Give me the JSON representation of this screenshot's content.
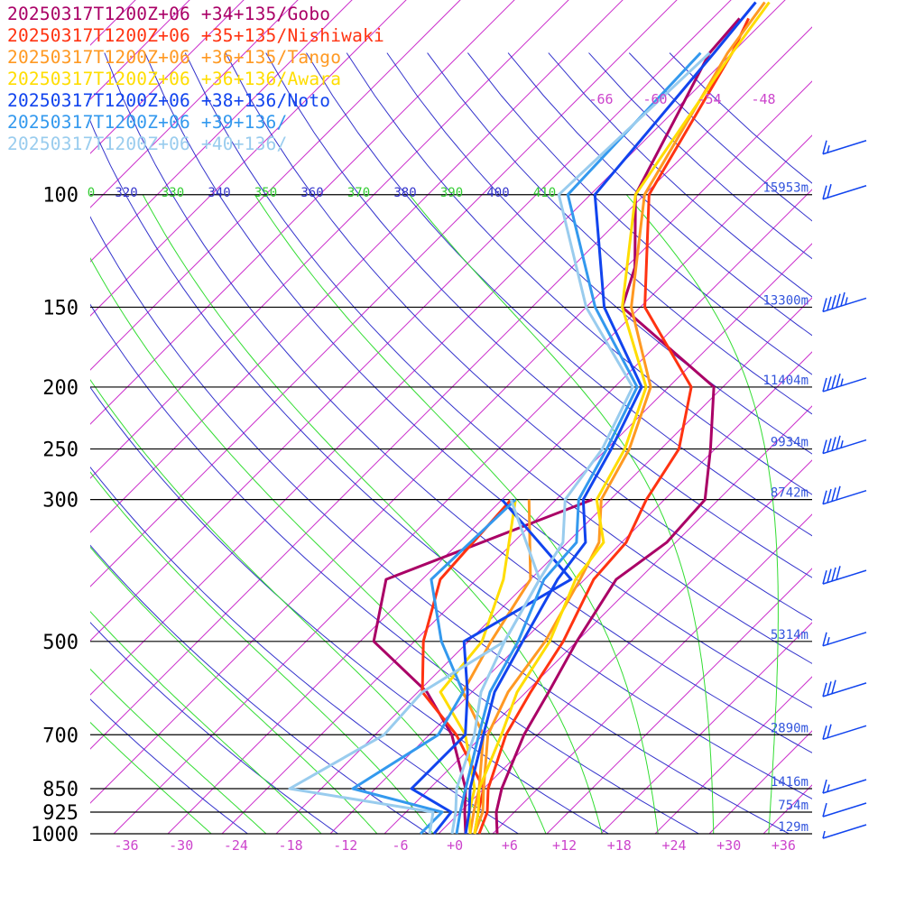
{
  "chart_data": {
    "type": "line",
    "chart_kind": "skew-T log-p sounding",
    "legend_placement": "top-left",
    "pressure_levels": [
      100,
      150,
      200,
      250,
      300,
      500,
      700,
      850,
      925,
      1000
    ],
    "pressure_labels": [
      "100",
      "150",
      "200",
      "250",
      "300",
      "500",
      "700",
      "850",
      "925",
      "1000"
    ],
    "heights": [
      {
        "p": 100,
        "label": "15953m"
      },
      {
        "p": 150,
        "label": "13300m"
      },
      {
        "p": 200,
        "label": "11404m"
      },
      {
        "p": 250,
        "label": "9934m"
      },
      {
        "p": 300,
        "label": "8742m"
      },
      {
        "p": 500,
        "label": "5314m"
      },
      {
        "p": 700,
        "label": "2890m"
      },
      {
        "p": 850,
        "label": "1416m"
      },
      {
        "p": 925,
        "label": "754m"
      },
      {
        "p": 1000,
        "label": "129m"
      }
    ],
    "temp_ticks": [
      "-36",
      "-30",
      "-24",
      "-18",
      "-12",
      "-6",
      "+0",
      "+6",
      "+12",
      "+18",
      "+24",
      "+30",
      "+36"
    ],
    "upper_temp_labels": [
      "-66",
      "-60",
      "-54",
      "-48"
    ],
    "theta_e_labels": [
      "0",
      "320",
      "330",
      "340",
      "350",
      "360",
      "370",
      "380",
      "390",
      "400",
      "410"
    ],
    "colors": {
      "isobar": "#000000",
      "isotherm": "#cc33cc",
      "dry_adiabat": "#3333cc",
      "moist_adiabat": "#33dd33",
      "pressure_text": "#000000",
      "height_text": "#3355dd",
      "temp_tick_text": "#cc44cc",
      "theta_blue_text": "#3333cc",
      "theta_green_text": "#33cc33",
      "wind_barb": "#1144ee"
    },
    "series": [
      {
        "name": "20250317T1200Z+06 +34+135/Gobo",
        "color": "#aa0066",
        "temp": [
          [
            1000,
            4.5
          ],
          [
            925,
            2
          ],
          [
            850,
            0
          ],
          [
            700,
            -3.5
          ],
          [
            600,
            -5.5
          ],
          [
            500,
            -8
          ],
          [
            400,
            -10.5
          ],
          [
            350,
            -9
          ],
          [
            300,
            -9.5
          ],
          [
            250,
            -14.5
          ],
          [
            200,
            -21
          ],
          [
            150,
            -40
          ],
          [
            130,
            -43
          ],
          [
            100,
            -51
          ],
          [
            60,
            -58.5
          ],
          [
            53,
            -59
          ]
        ],
        "dewpoint": [
          [
            1000,
            1
          ],
          [
            925,
            -1.5
          ],
          [
            850,
            -4
          ],
          [
            700,
            -11.5
          ],
          [
            600,
            -19
          ],
          [
            500,
            -30.5
          ],
          [
            400,
            -36
          ],
          [
            300,
            -22
          ]
        ]
      },
      {
        "name": "20250317T1200Z+06 +35+135/Nishiwaki",
        "color": "#ff3311",
        "temp": [
          [
            1000,
            2.5
          ],
          [
            925,
            1
          ],
          [
            850,
            -1.5
          ],
          [
            700,
            -5.5
          ],
          [
            600,
            -7.5
          ],
          [
            500,
            -9.5
          ],
          [
            400,
            -13
          ],
          [
            350,
            -13.5
          ],
          [
            300,
            -16
          ],
          [
            250,
            -18
          ],
          [
            200,
            -23.5
          ],
          [
            150,
            -37.5
          ],
          [
            100,
            -49.5
          ],
          [
            60,
            -56
          ],
          [
            53,
            -58
          ]
        ],
        "dewpoint": [
          [
            1000,
            2
          ],
          [
            925,
            0
          ],
          [
            850,
            -2
          ],
          [
            700,
            -11
          ],
          [
            600,
            -19.5
          ],
          [
            500,
            -25
          ],
          [
            400,
            -30
          ],
          [
            300,
            -31
          ]
        ]
      },
      {
        "name": "20250317T1200Z+06 +36+135/Tango",
        "color": "#ff9922",
        "temp": [
          [
            1000,
            2
          ],
          [
            925,
            0.5
          ],
          [
            850,
            -2
          ],
          [
            700,
            -7.5
          ],
          [
            600,
            -10
          ],
          [
            500,
            -11.5
          ],
          [
            400,
            -14.5
          ],
          [
            350,
            -16.5
          ],
          [
            300,
            -21
          ],
          [
            250,
            -23.5
          ],
          [
            200,
            -28
          ],
          [
            150,
            -39
          ],
          [
            100,
            -50
          ],
          [
            60,
            -56.5
          ],
          [
            50,
            -58
          ]
        ],
        "dewpoint": [
          [
            1000,
            1.5
          ],
          [
            925,
            -0.5
          ],
          [
            850,
            -2.5
          ],
          [
            700,
            -8
          ],
          [
            600,
            -15
          ],
          [
            500,
            -17.5
          ],
          [
            400,
            -20
          ],
          [
            300,
            -29
          ]
        ]
      },
      {
        "name": "20250317T1200Z+06 +36+136/Awara",
        "color": "#ffdd00",
        "temp": [
          [
            1000,
            2
          ],
          [
            925,
            0
          ],
          [
            850,
            -2.5
          ],
          [
            700,
            -6
          ],
          [
            600,
            -9
          ],
          [
            500,
            -11
          ],
          [
            400,
            -15
          ],
          [
            350,
            -16
          ],
          [
            300,
            -21.5
          ],
          [
            250,
            -24
          ],
          [
            200,
            -28.5
          ],
          [
            150,
            -40
          ],
          [
            100,
            -51
          ],
          [
            60,
            -56
          ],
          [
            50,
            -57.5
          ]
        ],
        "dewpoint": [
          [
            1000,
            1.5
          ],
          [
            925,
            -1
          ],
          [
            850,
            -3
          ],
          [
            700,
            -10
          ],
          [
            600,
            -17.5
          ],
          [
            500,
            -18.5
          ],
          [
            400,
            -23
          ],
          [
            300,
            -30.5
          ]
        ]
      },
      {
        "name": "20250317T1200Z+06 +38+136/Noto",
        "color": "#1144ee",
        "temp": [
          [
            1000,
            1
          ],
          [
            925,
            -1
          ],
          [
            850,
            -3.5
          ],
          [
            700,
            -8
          ],
          [
            600,
            -11.5
          ],
          [
            500,
            -14
          ],
          [
            400,
            -17
          ],
          [
            350,
            -18
          ],
          [
            300,
            -23
          ],
          [
            250,
            -25.5
          ],
          [
            200,
            -29
          ],
          [
            150,
            -42
          ],
          [
            100,
            -55.5
          ],
          [
            60,
            -58
          ],
          [
            50,
            -59
          ]
        ],
        "dewpoint": [
          [
            1000,
            -2.5
          ],
          [
            925,
            -3
          ],
          [
            850,
            -10
          ],
          [
            700,
            -10
          ],
          [
            600,
            -14.5
          ],
          [
            500,
            -20.5
          ],
          [
            400,
            -15.5
          ],
          [
            300,
            -32
          ]
        ]
      },
      {
        "name": "20250317T1200Z+06 +39+136/",
        "color": "#3399ee",
        "temp": [
          [
            1000,
            0
          ],
          [
            925,
            -2
          ],
          [
            850,
            -4
          ],
          [
            700,
            -8.5
          ],
          [
            600,
            -12
          ],
          [
            500,
            -14.5
          ],
          [
            400,
            -18.5
          ],
          [
            350,
            -19
          ],
          [
            300,
            -23.5
          ],
          [
            250,
            -26
          ],
          [
            200,
            -29.5
          ],
          [
            150,
            -43
          ],
          [
            100,
            -58.5
          ],
          [
            60,
            -59.5
          ]
        ],
        "dewpoint": [
          [
            1000,
            -4
          ],
          [
            925,
            -4
          ],
          [
            850,
            -16.5
          ],
          [
            700,
            -13
          ],
          [
            600,
            -15
          ],
          [
            500,
            -23
          ],
          [
            400,
            -31
          ],
          [
            300,
            -30.5
          ]
        ]
      },
      {
        "name": "20250317T1200Z+06 +40+136/",
        "color": "#99ccee",
        "temp": [
          [
            1000,
            -0.5
          ],
          [
            925,
            -2.5
          ],
          [
            850,
            -5
          ],
          [
            700,
            -9
          ],
          [
            600,
            -13
          ],
          [
            500,
            -16
          ],
          [
            400,
            -19
          ],
          [
            350,
            -20.5
          ],
          [
            300,
            -25
          ],
          [
            250,
            -26.5
          ],
          [
            200,
            -30
          ],
          [
            150,
            -44
          ],
          [
            100,
            -59.5
          ],
          [
            60,
            -58.5
          ]
        ],
        "dewpoint": [
          [
            1000,
            -3
          ],
          [
            925,
            -5
          ],
          [
            850,
            -23.5
          ],
          [
            700,
            -19
          ],
          [
            600,
            -19.5
          ],
          [
            500,
            -16
          ],
          [
            400,
            -19
          ],
          [
            300,
            -31
          ]
        ]
      }
    ],
    "wind_barbs": [
      {
        "p": 85,
        "speed": 15,
        "side": "up"
      },
      {
        "p": 100,
        "speed": 20,
        "side": "up"
      },
      {
        "p": 150,
        "speed": 55,
        "side": "up"
      },
      {
        "p": 200,
        "speed": 45,
        "side": "up"
      },
      {
        "p": 250,
        "speed": 45,
        "side": "up"
      },
      {
        "p": 300,
        "speed": 40,
        "side": "up"
      },
      {
        "p": 400,
        "speed": 40,
        "side": "up"
      },
      {
        "p": 500,
        "speed": 15,
        "side": "up"
      },
      {
        "p": 600,
        "speed": 30,
        "side": "up"
      },
      {
        "p": 700,
        "speed": 20,
        "side": "up"
      },
      {
        "p": 850,
        "speed": 15,
        "side": "down"
      },
      {
        "p": 925,
        "speed": 10,
        "side": "down"
      },
      {
        "p": 1000,
        "speed": 5,
        "side": "down"
      }
    ]
  }
}
